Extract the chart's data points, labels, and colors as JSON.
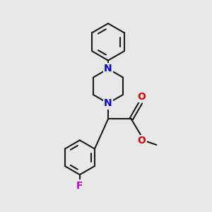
{
  "bg_color": "#e8e8e8",
  "bond_color": "#1a1a1a",
  "N_color": "#0000dd",
  "O_color": "#dd0000",
  "F_color": "#cc00cc",
  "lw": 1.5,
  "fsz": 9.5,
  "xlim": [
    0,
    10
  ],
  "ylim": [
    0,
    10
  ]
}
